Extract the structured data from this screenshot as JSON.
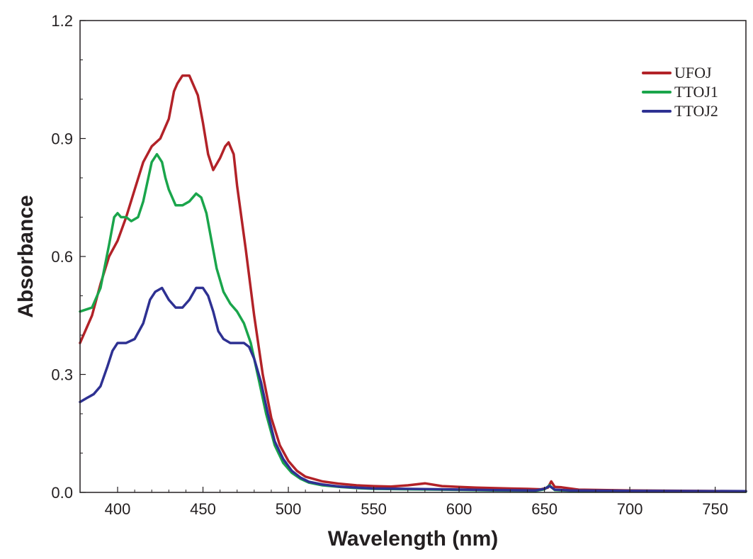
{
  "chart_data": {
    "type": "line",
    "title": "",
    "xlabel": "Wavelength (nm)",
    "ylabel": "Absorbance",
    "xlim": [
      378,
      768
    ],
    "ylim": [
      0,
      1.2
    ],
    "xticks": [
      400,
      450,
      500,
      550,
      600,
      650,
      700,
      750
    ],
    "yticks": [
      0.0,
      0.3,
      0.6,
      0.9,
      1.2
    ],
    "ytick_labels": [
      "0.0",
      "0.3",
      "0.6",
      "0.9",
      "1.2"
    ],
    "grid": false,
    "legend_position": "top-right",
    "series": [
      {
        "name": "UFOJ",
        "color": "#b22228",
        "points": [
          [
            378,
            0.38
          ],
          [
            385,
            0.45
          ],
          [
            390,
            0.53
          ],
          [
            395,
            0.6
          ],
          [
            400,
            0.64
          ],
          [
            405,
            0.7
          ],
          [
            410,
            0.77
          ],
          [
            415,
            0.84
          ],
          [
            420,
            0.88
          ],
          [
            425,
            0.9
          ],
          [
            430,
            0.95
          ],
          [
            433,
            1.02
          ],
          [
            435,
            1.04
          ],
          [
            438,
            1.06
          ],
          [
            442,
            1.06
          ],
          [
            447,
            1.01
          ],
          [
            450,
            0.94
          ],
          [
            453,
            0.86
          ],
          [
            456,
            0.82
          ],
          [
            460,
            0.85
          ],
          [
            463,
            0.88
          ],
          [
            465,
            0.89
          ],
          [
            468,
            0.86
          ],
          [
            470,
            0.78
          ],
          [
            475,
            0.62
          ],
          [
            480,
            0.45
          ],
          [
            485,
            0.3
          ],
          [
            490,
            0.19
          ],
          [
            495,
            0.12
          ],
          [
            500,
            0.08
          ],
          [
            505,
            0.055
          ],
          [
            510,
            0.04
          ],
          [
            520,
            0.028
          ],
          [
            530,
            0.022
          ],
          [
            540,
            0.018
          ],
          [
            550,
            0.016
          ],
          [
            560,
            0.015
          ],
          [
            570,
            0.018
          ],
          [
            580,
            0.023
          ],
          [
            590,
            0.016
          ],
          [
            600,
            0.014
          ],
          [
            610,
            0.012
          ],
          [
            620,
            0.011
          ],
          [
            630,
            0.01
          ],
          [
            640,
            0.009
          ],
          [
            648,
            0.008
          ],
          [
            652,
            0.012
          ],
          [
            654,
            0.028
          ],
          [
            656,
            0.014
          ],
          [
            660,
            0.013
          ],
          [
            670,
            0.007
          ],
          [
            700,
            0.005
          ],
          [
            730,
            0.004
          ],
          [
            768,
            0.003
          ]
        ]
      },
      {
        "name": "TTOJ1",
        "color": "#1aa54b",
        "points": [
          [
            378,
            0.46
          ],
          [
            385,
            0.47
          ],
          [
            390,
            0.52
          ],
          [
            395,
            0.63
          ],
          [
            398,
            0.7
          ],
          [
            400,
            0.71
          ],
          [
            402,
            0.7
          ],
          [
            405,
            0.7
          ],
          [
            408,
            0.69
          ],
          [
            412,
            0.7
          ],
          [
            415,
            0.74
          ],
          [
            418,
            0.8
          ],
          [
            420,
            0.84
          ],
          [
            423,
            0.86
          ],
          [
            426,
            0.84
          ],
          [
            428,
            0.8
          ],
          [
            430,
            0.77
          ],
          [
            434,
            0.73
          ],
          [
            438,
            0.73
          ],
          [
            442,
            0.74
          ],
          [
            446,
            0.76
          ],
          [
            449,
            0.75
          ],
          [
            452,
            0.71
          ],
          [
            455,
            0.64
          ],
          [
            458,
            0.57
          ],
          [
            462,
            0.51
          ],
          [
            466,
            0.48
          ],
          [
            470,
            0.46
          ],
          [
            474,
            0.43
          ],
          [
            478,
            0.38
          ],
          [
            482,
            0.3
          ],
          [
            487,
            0.2
          ],
          [
            492,
            0.12
          ],
          [
            497,
            0.075
          ],
          [
            502,
            0.05
          ],
          [
            507,
            0.035
          ],
          [
            512,
            0.025
          ],
          [
            520,
            0.018
          ],
          [
            530,
            0.014
          ],
          [
            540,
            0.011
          ],
          [
            550,
            0.009
          ],
          [
            570,
            0.008
          ],
          [
            590,
            0.007
          ],
          [
            620,
            0.005
          ],
          [
            645,
            0.004
          ],
          [
            650,
            0.008
          ],
          [
            653,
            0.018
          ],
          [
            656,
            0.006
          ],
          [
            665,
            0.004
          ],
          [
            700,
            0.003
          ],
          [
            768,
            0.002
          ]
        ]
      },
      {
        "name": "TTOJ2",
        "color": "#2e3192",
        "points": [
          [
            378,
            0.23
          ],
          [
            382,
            0.24
          ],
          [
            386,
            0.25
          ],
          [
            390,
            0.27
          ],
          [
            394,
            0.32
          ],
          [
            397,
            0.36
          ],
          [
            400,
            0.38
          ],
          [
            405,
            0.38
          ],
          [
            410,
            0.39
          ],
          [
            415,
            0.43
          ],
          [
            419,
            0.49
          ],
          [
            422,
            0.51
          ],
          [
            426,
            0.52
          ],
          [
            430,
            0.49
          ],
          [
            434,
            0.47
          ],
          [
            438,
            0.47
          ],
          [
            442,
            0.49
          ],
          [
            446,
            0.52
          ],
          [
            450,
            0.52
          ],
          [
            453,
            0.5
          ],
          [
            456,
            0.46
          ],
          [
            459,
            0.41
          ],
          [
            462,
            0.39
          ],
          [
            466,
            0.38
          ],
          [
            470,
            0.38
          ],
          [
            474,
            0.38
          ],
          [
            477,
            0.37
          ],
          [
            480,
            0.34
          ],
          [
            484,
            0.28
          ],
          [
            488,
            0.2
          ],
          [
            492,
            0.13
          ],
          [
            497,
            0.085
          ],
          [
            502,
            0.055
          ],
          [
            507,
            0.038
          ],
          [
            512,
            0.027
          ],
          [
            520,
            0.02
          ],
          [
            530,
            0.015
          ],
          [
            540,
            0.012
          ],
          [
            550,
            0.01
          ],
          [
            570,
            0.009
          ],
          [
            590,
            0.008
          ],
          [
            620,
            0.006
          ],
          [
            645,
            0.005
          ],
          [
            650,
            0.009
          ],
          [
            653,
            0.016
          ],
          [
            656,
            0.007
          ],
          [
            665,
            0.005
          ],
          [
            700,
            0.004
          ],
          [
            768,
            0.003
          ]
        ]
      }
    ]
  }
}
